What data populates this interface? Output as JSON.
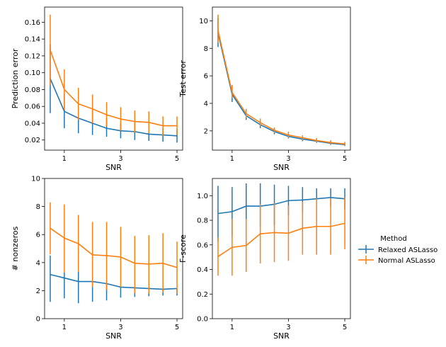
{
  "colors": {
    "relaxed": "#1f77b4",
    "normal": "#ff7f0e"
  },
  "legend": {
    "title": "Method",
    "placement": "right",
    "entries": [
      "Relaxed ASLasso",
      "Normal ASLasso"
    ]
  },
  "chart_data": [
    {
      "type": "line",
      "panel": "top-left",
      "xlabel": "SNR",
      "ylabel": "Prediction error",
      "x": [
        0.5,
        1.0,
        1.5,
        2.0,
        2.5,
        3.0,
        3.5,
        4.0,
        4.5,
        5.0
      ],
      "xlim": [
        0.3,
        5.2
      ],
      "xticks": [
        1,
        3,
        5
      ],
      "xticklabels": [
        "1",
        "3",
        "5"
      ],
      "ylim": [
        0.008,
        0.178
      ],
      "yticks": [
        0.02,
        0.04,
        0.06,
        0.08,
        0.1,
        0.12,
        0.14,
        0.16
      ],
      "yticklabels": [
        "0.02",
        "0.04",
        "0.06",
        "0.08",
        "0.10",
        "0.12",
        "0.14",
        "0.16"
      ],
      "series": [
        {
          "name": "Relaxed ASLasso",
          "values": [
            0.093,
            0.054,
            0.046,
            0.04,
            0.034,
            0.031,
            0.03,
            0.027,
            0.026,
            0.025
          ],
          "err_low": [
            0.052,
            0.034,
            0.028,
            0.026,
            0.024,
            0.022,
            0.02,
            0.019,
            0.018,
            0.017
          ],
          "err_high": [
            0.134,
            0.075,
            0.064,
            0.055,
            0.046,
            0.04,
            0.041,
            0.036,
            0.034,
            0.033
          ]
        },
        {
          "name": "Normal ASLasso",
          "values": [
            0.127,
            0.08,
            0.063,
            0.057,
            0.05,
            0.045,
            0.042,
            0.041,
            0.037,
            0.037
          ],
          "err_low": [
            0.085,
            0.056,
            0.044,
            0.04,
            0.036,
            0.031,
            0.029,
            0.028,
            0.025,
            0.026
          ],
          "err_high": [
            0.169,
            0.104,
            0.082,
            0.074,
            0.065,
            0.059,
            0.055,
            0.054,
            0.048,
            0.048
          ]
        }
      ]
    },
    {
      "type": "line",
      "panel": "top-right",
      "xlabel": "SNR",
      "ylabel": "Test error",
      "x": [
        0.5,
        1.0,
        1.5,
        2.0,
        2.5,
        3.0,
        3.5,
        4.0,
        4.5,
        5.0
      ],
      "xlim": [
        0.3,
        5.2
      ],
      "xticks": [
        1,
        3,
        5
      ],
      "xticklabels": [
        "1",
        "3",
        "5"
      ],
      "ylim": [
        0.6,
        11.0
      ],
      "yticks": [
        2,
        4,
        6,
        8,
        10
      ],
      "yticklabels": [
        "2",
        "4",
        "6",
        "8",
        "10"
      ],
      "series": [
        {
          "name": "Relaxed ASLasso",
          "values": [
            9.15,
            4.65,
            3.1,
            2.45,
            1.95,
            1.6,
            1.4,
            1.25,
            1.1,
            1.0
          ],
          "err_low": [
            8.1,
            4.1,
            2.8,
            2.2,
            1.75,
            1.45,
            1.25,
            1.12,
            0.98,
            0.9
          ],
          "err_high": [
            10.2,
            5.2,
            3.45,
            2.7,
            2.15,
            1.8,
            1.55,
            1.38,
            1.22,
            1.1
          ]
        },
        {
          "name": "Normal ASLasso",
          "values": [
            9.3,
            4.8,
            3.25,
            2.6,
            2.05,
            1.7,
            1.5,
            1.3,
            1.15,
            1.05
          ],
          "err_low": [
            8.4,
            4.4,
            2.95,
            2.35,
            1.85,
            1.5,
            1.33,
            1.15,
            1.02,
            0.93
          ],
          "err_high": [
            10.45,
            5.35,
            3.6,
            2.9,
            2.25,
            1.95,
            1.68,
            1.48,
            1.32,
            1.2
          ]
        }
      ]
    },
    {
      "type": "line",
      "panel": "bottom-left",
      "xlabel": "SNR",
      "ylabel": "# nonzeros",
      "x": [
        0.5,
        1.0,
        1.5,
        2.0,
        2.5,
        3.0,
        3.5,
        4.0,
        4.5,
        5.0
      ],
      "xlim": [
        0.3,
        5.2
      ],
      "xticks": [
        1,
        3,
        5
      ],
      "xticklabels": [
        "1",
        "3",
        "5"
      ],
      "ylim": [
        0,
        10
      ],
      "yticks": [
        0,
        2,
        4,
        6,
        8,
        10
      ],
      "yticklabels": [
        "0",
        "2",
        "4",
        "6",
        "8",
        "10"
      ],
      "series": [
        {
          "name": "Relaxed ASLasso",
          "values": [
            3.15,
            2.9,
            2.65,
            2.65,
            2.5,
            2.25,
            2.2,
            2.15,
            2.1,
            2.15
          ],
          "err_low": [
            1.2,
            1.45,
            1.1,
            1.2,
            1.3,
            1.5,
            1.55,
            1.6,
            1.65,
            1.65
          ],
          "err_high": [
            4.5,
            3.3,
            3.35,
            2.65,
            2.5,
            2.25,
            2.2,
            2.15,
            2.1,
            2.15
          ]
        },
        {
          "name": "Normal ASLasso",
          "values": [
            6.45,
            5.75,
            5.35,
            4.55,
            4.5,
            4.4,
            3.95,
            3.9,
            3.95,
            3.65
          ],
          "err_low": [
            4.6,
            3.3,
            3.35,
            2.25,
            2.05,
            2.25,
            1.8,
            1.8,
            1.85,
            1.8
          ],
          "err_high": [
            8.3,
            8.15,
            7.4,
            6.9,
            6.9,
            6.55,
            5.9,
            5.95,
            6.1,
            5.5
          ]
        }
      ]
    },
    {
      "type": "line",
      "panel": "bottom-right",
      "xlabel": "SNR",
      "ylabel": "F-score",
      "x": [
        0.5,
        1.0,
        1.5,
        2.0,
        2.5,
        3.0,
        3.5,
        4.0,
        4.5,
        5.0
      ],
      "xlim": [
        0.3,
        5.2
      ],
      "xticks": [
        1,
        3,
        5
      ],
      "xticklabels": [
        "1",
        "3",
        "5"
      ],
      "ylim": [
        0.0,
        1.14
      ],
      "yticks": [
        0.0,
        0.2,
        0.4,
        0.6,
        0.8,
        1.0
      ],
      "yticklabels": [
        "0.0",
        "0.2",
        "0.4",
        "0.6",
        "0.8",
        "1.0"
      ],
      "series": [
        {
          "name": "Relaxed ASLasso",
          "values": [
            0.855,
            0.87,
            0.915,
            0.915,
            0.93,
            0.96,
            0.965,
            0.975,
            0.985,
            0.975
          ],
          "err_low": [
            0.63,
            0.67,
            0.73,
            0.75,
            0.76,
            0.84,
            0.86,
            0.89,
            0.91,
            0.89
          ],
          "err_high": [
            1.08,
            1.07,
            1.1,
            1.1,
            1.09,
            1.08,
            1.07,
            1.06,
            1.06,
            1.06
          ]
        },
        {
          "name": "Normal ASLasso",
          "values": [
            0.505,
            0.58,
            0.595,
            0.69,
            0.7,
            0.695,
            0.735,
            0.75,
            0.75,
            0.775
          ],
          "err_low": [
            0.35,
            0.35,
            0.38,
            0.45,
            0.46,
            0.47,
            0.52,
            0.52,
            0.52,
            0.565
          ],
          "err_high": [
            0.66,
            0.81,
            0.81,
            0.93,
            0.94,
            0.92,
            0.95,
            0.98,
            0.98,
            0.985
          ]
        }
      ]
    }
  ]
}
